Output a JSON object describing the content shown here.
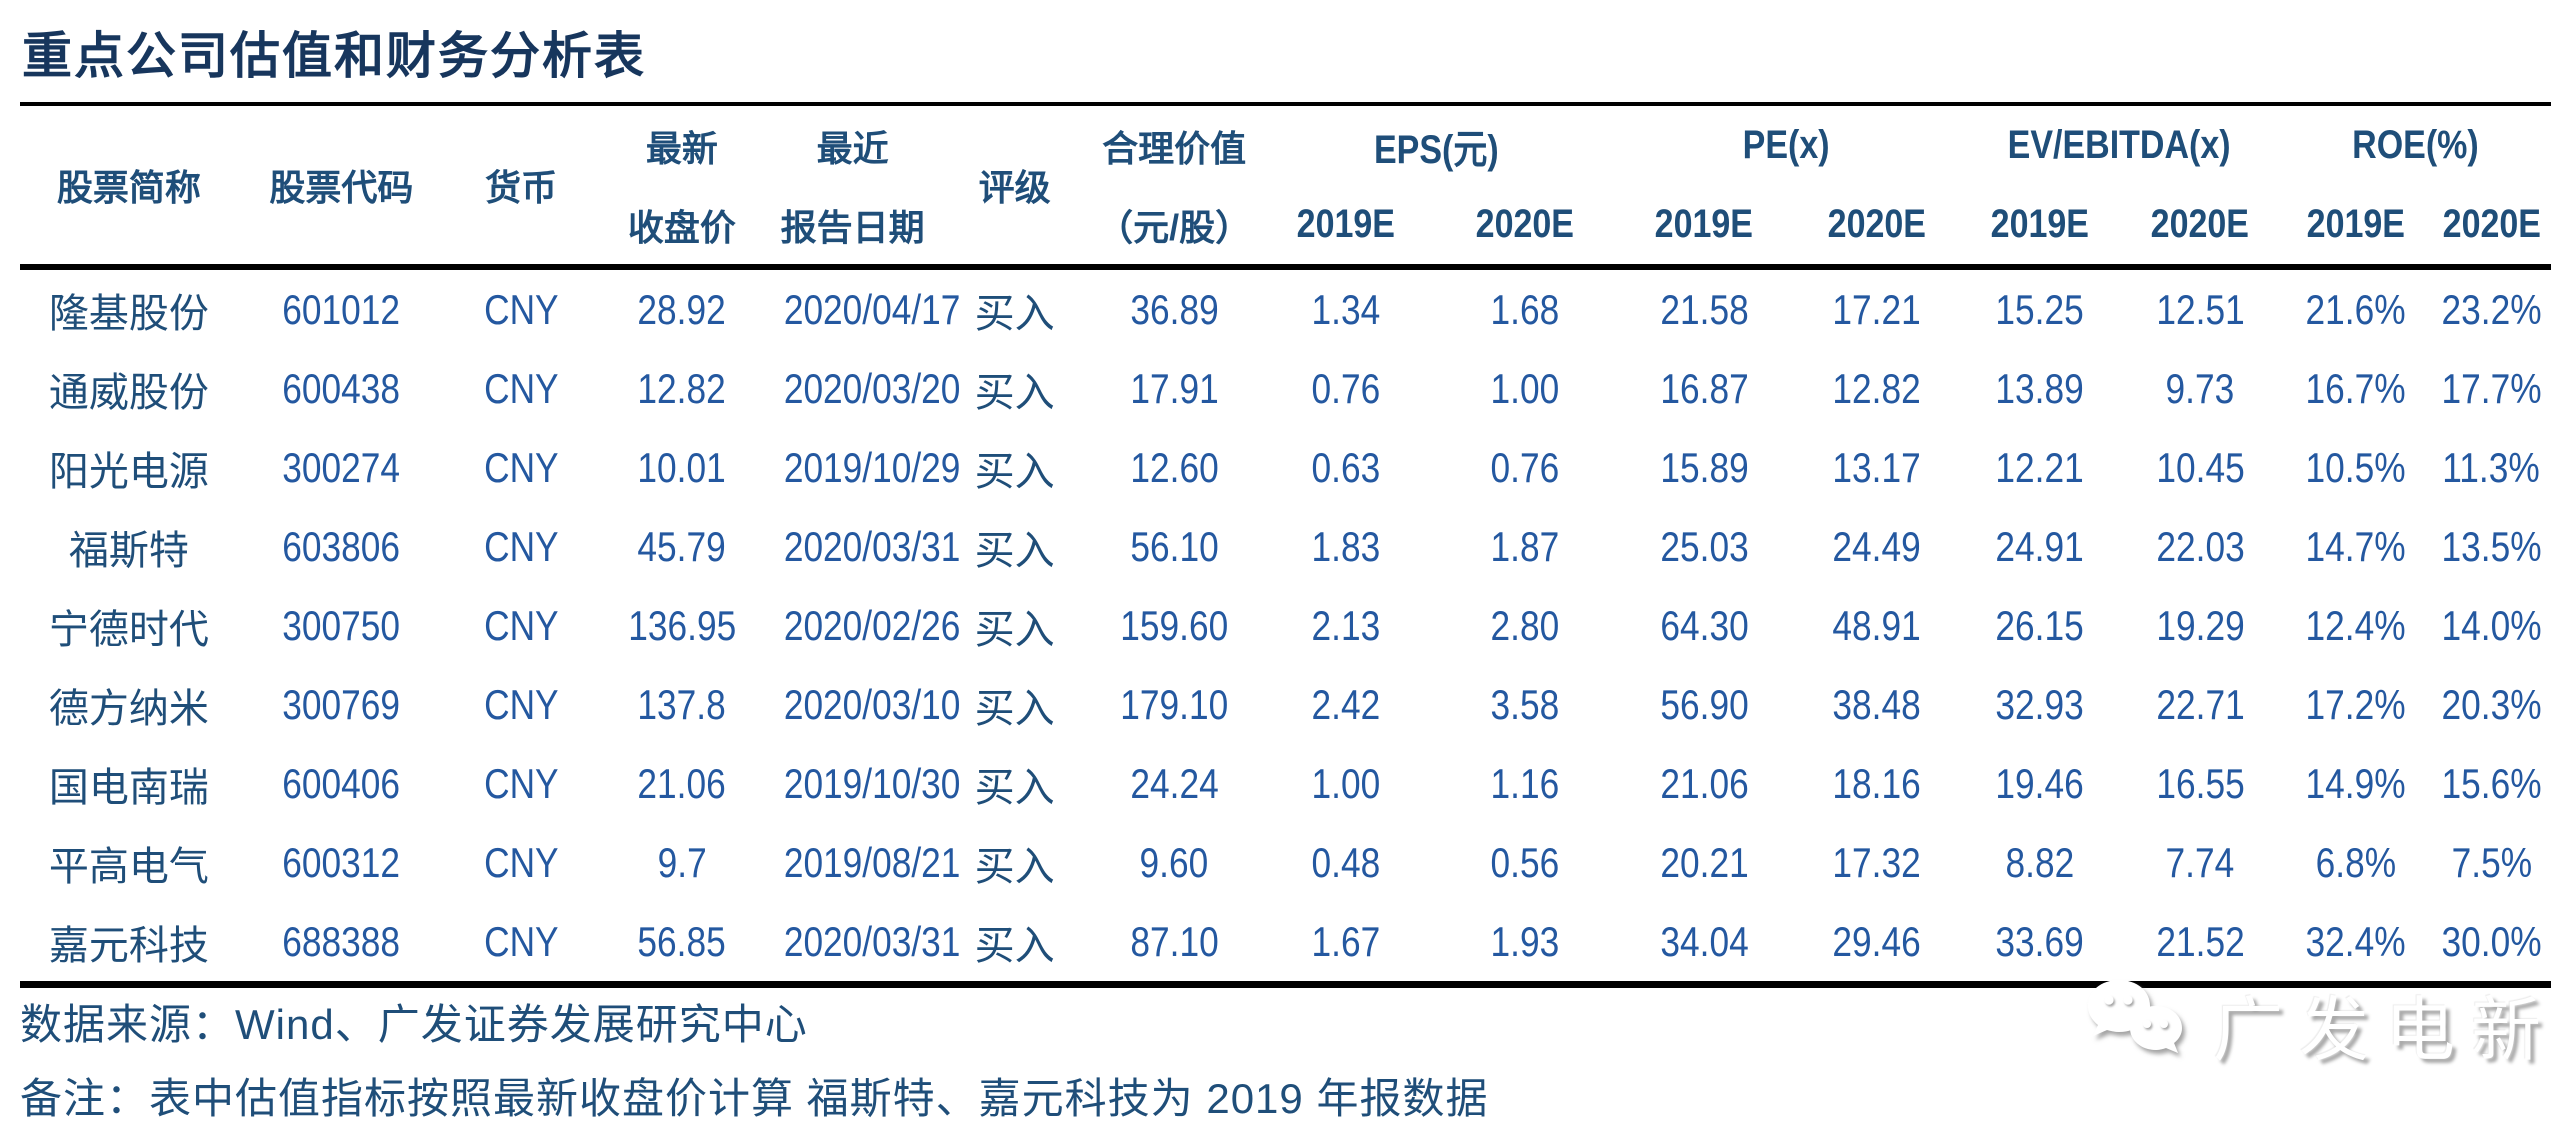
{
  "title": "重点公司估值和财务分析表",
  "table": {
    "header": {
      "stock_name": "股票简称",
      "stock_code": "股票代码",
      "currency": "货币",
      "latest_close_line1": "最新",
      "latest_close_line2": "收盘价",
      "report_date_line1": "最近",
      "report_date_line2": "报告日期",
      "rating": "评级",
      "fair_value_line1": "合理价值",
      "fair_value_line2": "（元/股）",
      "groups": [
        {
          "label": "EPS(元)"
        },
        {
          "label": "PE(x)"
        },
        {
          "label": "EV/EBITDA(x)"
        },
        {
          "label": "ROE(%)"
        }
      ],
      "year1": "2019E",
      "year2": "2020E"
    },
    "rows": [
      [
        "隆基股份",
        "601012",
        "CNY",
        "28.92",
        "2020/04/17",
        "买入",
        "36.89",
        "1.34",
        "1.68",
        "21.58",
        "17.21",
        "15.25",
        "12.51",
        "21.6%",
        "23.2%"
      ],
      [
        "通威股份",
        "600438",
        "CNY",
        "12.82",
        "2020/03/20",
        "买入",
        "17.91",
        "0.76",
        "1.00",
        "16.87",
        "12.82",
        "13.89",
        "9.73",
        "16.7%",
        "17.7%"
      ],
      [
        "阳光电源",
        "300274",
        "CNY",
        "10.01",
        "2019/10/29",
        "买入",
        "12.60",
        "0.63",
        "0.76",
        "15.89",
        "13.17",
        "12.21",
        "10.45",
        "10.5%",
        "11.3%"
      ],
      [
        "福斯特",
        "603806",
        "CNY",
        "45.79",
        "2020/03/31",
        "买入",
        "56.10",
        "1.83",
        "1.87",
        "25.03",
        "24.49",
        "24.91",
        "22.03",
        "14.7%",
        "13.5%"
      ],
      [
        "宁德时代",
        "300750",
        "CNY",
        "136.95",
        "2020/02/26",
        "买入",
        "159.60",
        "2.13",
        "2.80",
        "64.30",
        "48.91",
        "26.15",
        "19.29",
        "12.4%",
        "14.0%"
      ],
      [
        "德方纳米",
        "300769",
        "CNY",
        "137.8",
        "2020/03/10",
        "买入",
        "179.10",
        "2.42",
        "3.58",
        "56.90",
        "38.48",
        "32.93",
        "22.71",
        "17.2%",
        "20.3%"
      ],
      [
        "国电南瑞",
        "600406",
        "CNY",
        "21.06",
        "2019/10/30",
        "买入",
        "24.24",
        "1.00",
        "1.16",
        "21.06",
        "18.16",
        "19.46",
        "16.55",
        "14.9%",
        "15.6%"
      ],
      [
        "平高电气",
        "600312",
        "CNY",
        "9.7",
        "2019/08/21",
        "买入",
        "9.60",
        "0.48",
        "0.56",
        "20.21",
        "17.32",
        "8.82",
        "7.74",
        "6.8%",
        "7.5%"
      ],
      [
        "嘉元科技",
        "688388",
        "CNY",
        "56.85",
        "2020/03/31",
        "买入",
        "87.10",
        "1.67",
        "1.93",
        "34.04",
        "29.46",
        "33.69",
        "21.52",
        "32.4%",
        "30.0%"
      ]
    ]
  },
  "footer": {
    "source": "数据来源：Wind、广发证券发展研究中心",
    "note": "备注：表中估值指标按照最新收盘价计算 福斯特、嘉元科技为 2019 年报数据",
    "watermark_text": "广发电新"
  },
  "colors": {
    "title_text": "#17365D",
    "header_text": "#1F4E79",
    "data_text": "#2458A0",
    "rule_lines": "#000000",
    "background": "#FFFFFF",
    "watermark_shadow": "#A9A9A9"
  }
}
